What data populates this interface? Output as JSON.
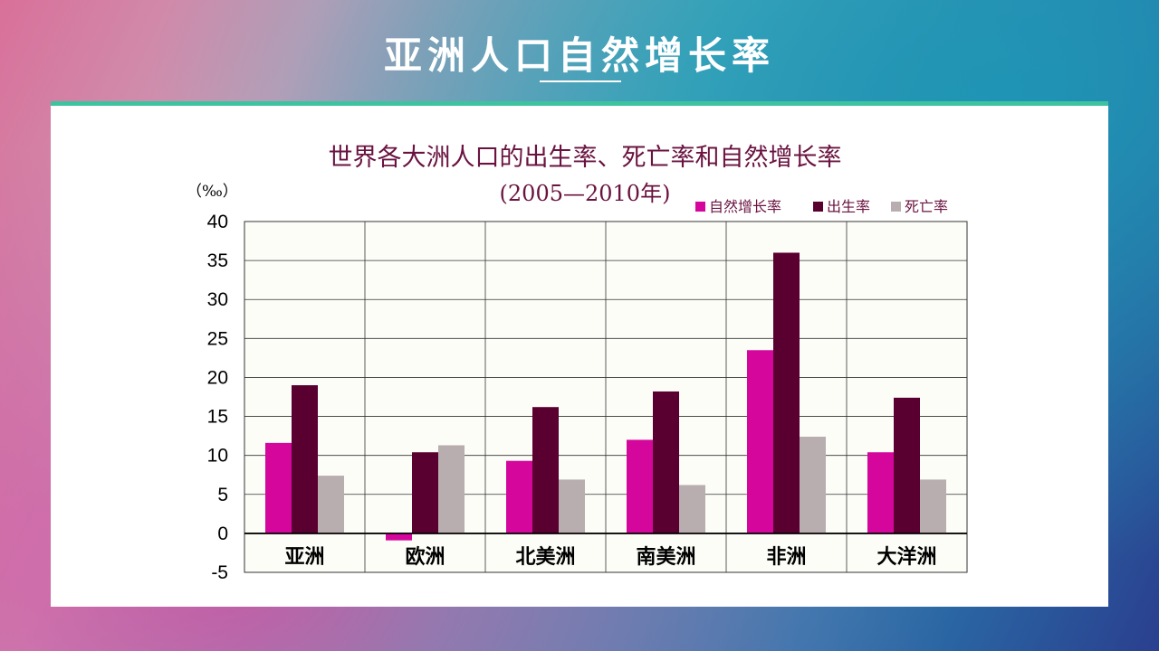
{
  "slide": {
    "title": "亚洲人口自然增长率"
  },
  "colors": {
    "natural_growth": "#d4069c",
    "birth": "#5a0030",
    "death": "#b8aeb0",
    "header_bar": "#3ec3a0"
  },
  "chart_data": {
    "type": "bar",
    "title": "世界各大洲人口的出生率、死亡率和自然增长率",
    "subtitle": "(2005—2010年)",
    "ylabel": "（‰）",
    "xlabel": "",
    "ylim": [
      -5,
      40
    ],
    "yticks": [
      40,
      35,
      30,
      25,
      20,
      15,
      10,
      5,
      0,
      -5
    ],
    "grid": true,
    "legend_position": "top-right",
    "categories": [
      "亚洲",
      "欧洲",
      "北美洲",
      "南美洲",
      "非洲",
      "大洋洲"
    ],
    "series": [
      {
        "name": "自然增长率",
        "color_key": "natural_growth",
        "values": [
          11.6,
          -0.9,
          9.3,
          12.0,
          23.5,
          10.4
        ]
      },
      {
        "name": "出生率",
        "color_key": "birth",
        "values": [
          19.0,
          10.4,
          16.2,
          18.2,
          36.0,
          17.4
        ]
      },
      {
        "name": "死亡率",
        "color_key": "death",
        "values": [
          7.4,
          11.3,
          6.9,
          6.2,
          12.4,
          6.9
        ]
      }
    ]
  }
}
